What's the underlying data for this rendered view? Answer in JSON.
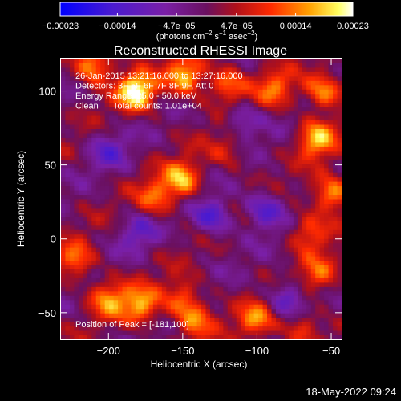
{
  "chart_data": {
    "type": "heatmap",
    "title": "Reconstructed RHESSI Image",
    "xlabel": "Heliocentric X (arcsec)",
    "ylabel": "Heliocentric Y (arcsec)",
    "xlim": [
      -232,
      -43
    ],
    "ylim": [
      -68,
      122
    ],
    "xticks": [
      -200,
      -150,
      -100,
      -50
    ],
    "yticks": [
      -50,
      0,
      50,
      100
    ],
    "xtick_labels": [
      "−200",
      "−150",
      "−100",
      "−50"
    ],
    "ytick_labels": [
      "−50",
      "0",
      "50",
      "100"
    ],
    "colorbar": {
      "range": [
        -0.00023,
        0.00023
      ],
      "ticks": [
        -0.00023,
        -0.00014,
        -4.7e-05,
        4.7e-05,
        0.00014,
        0.00023
      ],
      "tick_labels": [
        "−0.00023",
        "−0.00014",
        "−4.7e−05",
        "4.7e−05",
        "0.00014",
        "0.00023"
      ],
      "units_main": "(photons cm",
      "units_sup1": "−2",
      "units_mid1": " s",
      "units_sup2": "−1",
      "units_mid2": " asec",
      "units_sup3": "−2",
      "units_end": ")"
    },
    "annotations": [
      "26-Jan-2015 13:21:16.000 to 13:27:16.000",
      "Detectors: 3F 5F 6F 7F 8F 9F, Att 0",
      "Energy Range: 25.0 - 50.0 keV",
      "Clean      Total counts: 1.01e+04"
    ],
    "peak_label": "Position of Peak = [-181,100]",
    "peak": [
      -181,
      100
    ],
    "bright_regions": [
      {
        "x": -181,
        "y": 100,
        "value": 0.00023
      },
      {
        "x": -148,
        "y": 110,
        "value": 0.00019
      },
      {
        "x": -210,
        "y": 118,
        "value": 0.00018
      },
      {
        "x": -120,
        "y": 105,
        "value": 0.00014
      },
      {
        "x": -88,
        "y": 102,
        "value": 0.00012
      },
      {
        "x": -55,
        "y": 100,
        "value": 0.00016
      },
      {
        "x": -60,
        "y": 68,
        "value": 0.00017
      },
      {
        "x": -50,
        "y": 30,
        "value": 0.00017
      },
      {
        "x": -65,
        "y": 5,
        "value": 0.00012
      },
      {
        "x": -150,
        "y": 40,
        "value": 0.00017
      },
      {
        "x": -168,
        "y": 28,
        "value": 0.00012
      },
      {
        "x": -222,
        "y": -15,
        "value": 0.00013
      },
      {
        "x": -200,
        "y": -40,
        "value": 0.00014
      },
      {
        "x": -178,
        "y": -45,
        "value": 0.00016
      },
      {
        "x": -150,
        "y": -40,
        "value": 0.00012
      },
      {
        "x": -142,
        "y": -55,
        "value": 0.00013
      },
      {
        "x": -100,
        "y": -55,
        "value": 0.00014
      },
      {
        "x": -70,
        "y": -60,
        "value": 0.00011
      },
      {
        "x": -58,
        "y": -25,
        "value": 0.00012
      },
      {
        "x": -120,
        "y": 60,
        "value": 8e-05
      }
    ],
    "dark_regions": [
      {
        "x": -130,
        "y": 15,
        "value": -0.00014
      },
      {
        "x": -95,
        "y": 20,
        "value": -0.00013
      },
      {
        "x": -80,
        "y": -40,
        "value": -0.00012
      },
      {
        "x": -200,
        "y": 60,
        "value": -9e-05
      },
      {
        "x": -110,
        "y": 80,
        "value": -0.0001
      },
      {
        "x": -180,
        "y": 5,
        "value": -9e-05
      }
    ]
  },
  "timestamp": "18-May-2022 09:24"
}
